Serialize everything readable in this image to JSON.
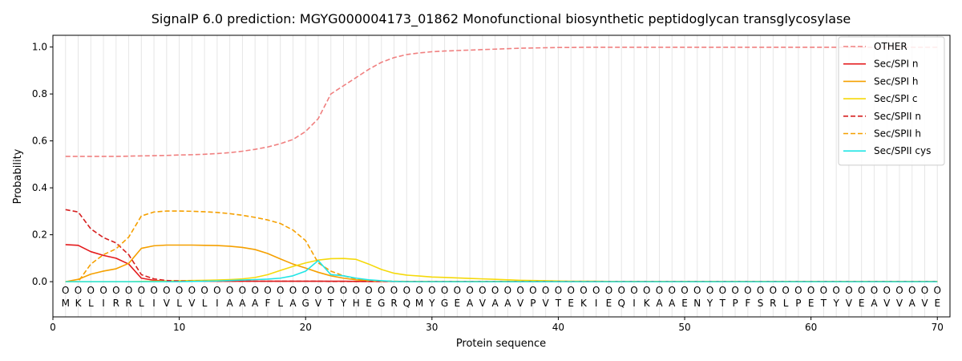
{
  "chart_data": {
    "type": "line",
    "title": "SignalP 6.0 prediction: MGYG000004173_01862 Monofunctional biosynthetic peptidoglycan transglycosylase",
    "xlabel": "Protein sequence",
    "ylabel": "Probability",
    "xlim": [
      0,
      71
    ],
    "ylim": [
      -0.15,
      1.05
    ],
    "xticks": [
      0,
      10,
      20,
      30,
      40,
      50,
      60,
      70
    ],
    "yticks": [
      0.0,
      0.2,
      0.4,
      0.6,
      0.8,
      1.0
    ],
    "xtick_labels": [
      "0",
      "10",
      "20",
      "30",
      "40",
      "50",
      "60",
      "70"
    ],
    "ytick_labels": [
      "0.0",
      "0.2",
      "0.4",
      "0.6",
      "0.8",
      "1.0"
    ],
    "grid": "vertical lines at each residue",
    "legend_position": "top-right",
    "sequence": [
      "M",
      "K",
      "L",
      "I",
      "R",
      "R",
      "L",
      "I",
      "V",
      "L",
      "V",
      "L",
      "I",
      "A",
      "A",
      "A",
      "F",
      "L",
      "A",
      "G",
      "V",
      "T",
      "Y",
      "H",
      "E",
      "G",
      "R",
      "Q",
      "M",
      "Y",
      "G",
      "E",
      "A",
      "V",
      "A",
      "A",
      "V",
      "P",
      "V",
      "T",
      "E",
      "K",
      "I",
      "E",
      "Q",
      "I",
      "K",
      "A",
      "A",
      "E",
      "N",
      "Y",
      "T",
      "P",
      "F",
      "S",
      "R",
      "L",
      "P",
      "E",
      "T",
      "Y",
      "V",
      "E",
      "A",
      "V",
      "V",
      "A",
      "V",
      "E"
    ],
    "region_marker": "O",
    "series": [
      {
        "name": "OTHER",
        "color": "#f08080",
        "style": "dashed",
        "values": [
          0.534,
          0.534,
          0.534,
          0.534,
          0.534,
          0.535,
          0.536,
          0.537,
          0.538,
          0.54,
          0.541,
          0.543,
          0.546,
          0.55,
          0.556,
          0.564,
          0.574,
          0.588,
          0.606,
          0.64,
          0.695,
          0.8,
          0.835,
          0.87,
          0.905,
          0.935,
          0.955,
          0.968,
          0.975,
          0.98,
          0.983,
          0.985,
          0.987,
          0.989,
          0.991,
          0.993,
          0.995,
          0.996,
          0.997,
          0.998,
          0.998,
          0.999,
          0.999,
          0.999,
          0.999,
          0.999,
          0.999,
          0.999,
          0.999,
          0.999,
          0.999,
          0.999,
          0.999,
          0.999,
          0.999,
          0.999,
          0.999,
          0.999,
          0.999,
          0.999,
          0.999,
          0.999,
          0.999,
          0.999,
          0.999,
          0.999,
          0.999,
          0.999,
          0.999,
          0.999
        ]
      },
      {
        "name": "Sec/SPI n",
        "color": "#e41a1c",
        "style": "solid",
        "values": [
          0.158,
          0.155,
          0.128,
          0.112,
          0.1,
          0.075,
          0.015,
          0.006,
          0.003,
          0.002,
          0.002,
          0.002,
          0.002,
          0.002,
          0.002,
          0.002,
          0.002,
          0.002,
          0.002,
          0.002,
          0.002,
          0.002,
          0.002,
          0.001,
          0.001,
          0.001,
          0.001,
          0.001,
          0.001,
          0.001,
          0.001,
          0.001,
          0.001,
          0.001,
          0.001,
          0.001,
          0.001,
          0.001,
          0.001,
          0.001,
          0.001,
          0.001,
          0.001,
          0.001,
          0.001,
          0.001,
          0.001,
          0.001,
          0.001,
          0.001,
          0.001,
          0.001,
          0.001,
          0.001,
          0.001,
          0.001,
          0.001,
          0.001,
          0.001,
          0.001,
          0.001,
          0.001,
          0.001,
          0.001,
          0.001,
          0.001,
          0.001,
          0.001,
          0.001,
          0.001
        ]
      },
      {
        "name": "Sec/SPI h",
        "color": "#f5a000",
        "style": "solid",
        "values": [
          0.0,
          0.01,
          0.032,
          0.045,
          0.055,
          0.078,
          0.142,
          0.153,
          0.156,
          0.156,
          0.156,
          0.155,
          0.154,
          0.151,
          0.146,
          0.137,
          0.12,
          0.097,
          0.075,
          0.058,
          0.04,
          0.025,
          0.015,
          0.008,
          0.004,
          0.002,
          0.001,
          0.001,
          0.001,
          0.001,
          0.001,
          0.001,
          0.001,
          0.001,
          0.001,
          0.001,
          0.001,
          0.001,
          0.001,
          0.001,
          0.001,
          0.001,
          0.001,
          0.001,
          0.001,
          0.001,
          0.001,
          0.001,
          0.001,
          0.001,
          0.001,
          0.001,
          0.001,
          0.001,
          0.001,
          0.001,
          0.001,
          0.001,
          0.001,
          0.001,
          0.001,
          0.001,
          0.001,
          0.001,
          0.001,
          0.001,
          0.001,
          0.001,
          0.001,
          0.001
        ]
      },
      {
        "name": "Sec/SPI c",
        "color": "#f5d90a",
        "style": "solid",
        "values": [
          0.0,
          0.0,
          0.0,
          0.0,
          0.0,
          0.0,
          0.001,
          0.002,
          0.003,
          0.004,
          0.005,
          0.006,
          0.007,
          0.009,
          0.012,
          0.018,
          0.03,
          0.048,
          0.065,
          0.08,
          0.092,
          0.098,
          0.099,
          0.095,
          0.075,
          0.052,
          0.036,
          0.028,
          0.024,
          0.02,
          0.018,
          0.016,
          0.014,
          0.012,
          0.01,
          0.008,
          0.006,
          0.005,
          0.004,
          0.003,
          0.002,
          0.002,
          0.002,
          0.001,
          0.001,
          0.001,
          0.001,
          0.001,
          0.001,
          0.001,
          0.001,
          0.001,
          0.001,
          0.001,
          0.001,
          0.001,
          0.001,
          0.001,
          0.001,
          0.001,
          0.001,
          0.001,
          0.001,
          0.001,
          0.001,
          0.001,
          0.001,
          0.001,
          0.001,
          0.001
        ]
      },
      {
        "name": "Sec/SPII n",
        "color": "#d62020",
        "style": "dashed",
        "values": [
          0.307,
          0.297,
          0.225,
          0.188,
          0.165,
          0.115,
          0.03,
          0.012,
          0.005,
          0.003,
          0.002,
          0.002,
          0.002,
          0.002,
          0.002,
          0.002,
          0.002,
          0.002,
          0.002,
          0.002,
          0.002,
          0.001,
          0.001,
          0.001,
          0.001,
          0.001,
          0.001,
          0.001,
          0.001,
          0.001,
          0.001,
          0.001,
          0.001,
          0.001,
          0.001,
          0.001,
          0.001,
          0.001,
          0.001,
          0.001,
          0.001,
          0.001,
          0.001,
          0.001,
          0.001,
          0.001,
          0.001,
          0.001,
          0.001,
          0.001,
          0.001,
          0.001,
          0.001,
          0.001,
          0.001,
          0.001,
          0.001,
          0.001,
          0.001,
          0.001,
          0.001,
          0.001,
          0.001,
          0.001,
          0.001,
          0.001,
          0.001,
          0.001,
          0.001,
          0.001
        ]
      },
      {
        "name": "Sec/SPII h",
        "color": "#f5a000",
        "style": "dashed",
        "values": [
          0.0,
          0.0,
          0.075,
          0.115,
          0.14,
          0.19,
          0.28,
          0.297,
          0.301,
          0.301,
          0.3,
          0.298,
          0.295,
          0.29,
          0.283,
          0.274,
          0.263,
          0.248,
          0.22,
          0.175,
          0.08,
          0.045,
          0.025,
          0.012,
          0.006,
          0.003,
          0.002,
          0.001,
          0.001,
          0.001,
          0.001,
          0.001,
          0.001,
          0.001,
          0.001,
          0.001,
          0.001,
          0.001,
          0.001,
          0.001,
          0.001,
          0.001,
          0.001,
          0.001,
          0.001,
          0.001,
          0.001,
          0.001,
          0.001,
          0.001,
          0.001,
          0.001,
          0.001,
          0.001,
          0.001,
          0.001,
          0.001,
          0.001,
          0.001,
          0.001,
          0.001,
          0.001,
          0.001,
          0.001,
          0.001,
          0.001,
          0.001,
          0.001,
          0.001,
          0.001
        ]
      },
      {
        "name": "Sec/SPII cys",
        "color": "#22e5e5",
        "style": "solid",
        "values": [
          0.0,
          0.0,
          0.0,
          0.0,
          0.0,
          0.0,
          0.0,
          0.0,
          0.0,
          0.0,
          0.001,
          0.002,
          0.003,
          0.005,
          0.007,
          0.009,
          0.011,
          0.015,
          0.025,
          0.045,
          0.09,
          0.03,
          0.025,
          0.015,
          0.008,
          0.004,
          0.001,
          0.0,
          0.0,
          0.0,
          0.0,
          0.0,
          0.0,
          0.0,
          0.0,
          0.0,
          0.0,
          0.0,
          0.0,
          0.0,
          0.0,
          0.0,
          0.0,
          0.0,
          0.0,
          0.0,
          0.0,
          0.0,
          0.0,
          0.0,
          0.0,
          0.0,
          0.0,
          0.0,
          0.0,
          0.0,
          0.0,
          0.0,
          0.0,
          0.0,
          0.0,
          0.0,
          0.0,
          0.0,
          0.0,
          0.0,
          0.0,
          0.0,
          0.0,
          0.0
        ]
      }
    ]
  }
}
